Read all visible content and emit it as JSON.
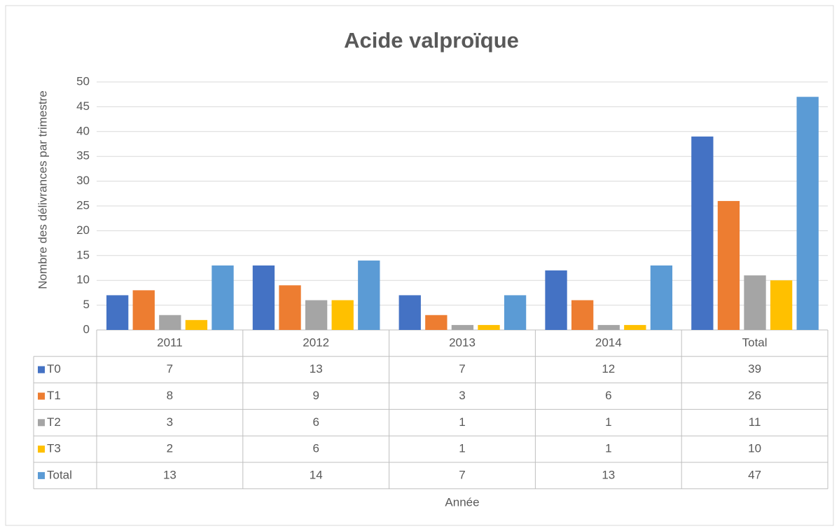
{
  "chart_data": {
    "type": "bar",
    "title": "Acide valproïque",
    "y_label": "Nombre des délivrances par trimestre",
    "x_label": "Année",
    "categories": [
      "2011",
      "2012",
      "2013",
      "2014",
      "Total"
    ],
    "series": [
      {
        "name": "T0",
        "color": "#4472c4",
        "values": [
          7,
          13,
          7,
          12,
          39
        ]
      },
      {
        "name": "T1",
        "color": "#ed7d31",
        "values": [
          8,
          9,
          3,
          6,
          26
        ]
      },
      {
        "name": "T2",
        "color": "#a5a5a5",
        "values": [
          3,
          6,
          1,
          1,
          11
        ]
      },
      {
        "name": "T3",
        "color": "#ffc000",
        "values": [
          2,
          6,
          1,
          1,
          10
        ]
      },
      {
        "name": "Total",
        "color": "#5b9bd5",
        "values": [
          13,
          14,
          7,
          13,
          47
        ]
      }
    ],
    "ylim": [
      0,
      50
    ],
    "yticks": [
      0,
      5,
      10,
      15,
      20,
      25,
      30,
      35,
      40,
      45,
      50
    ],
    "grid": true
  }
}
